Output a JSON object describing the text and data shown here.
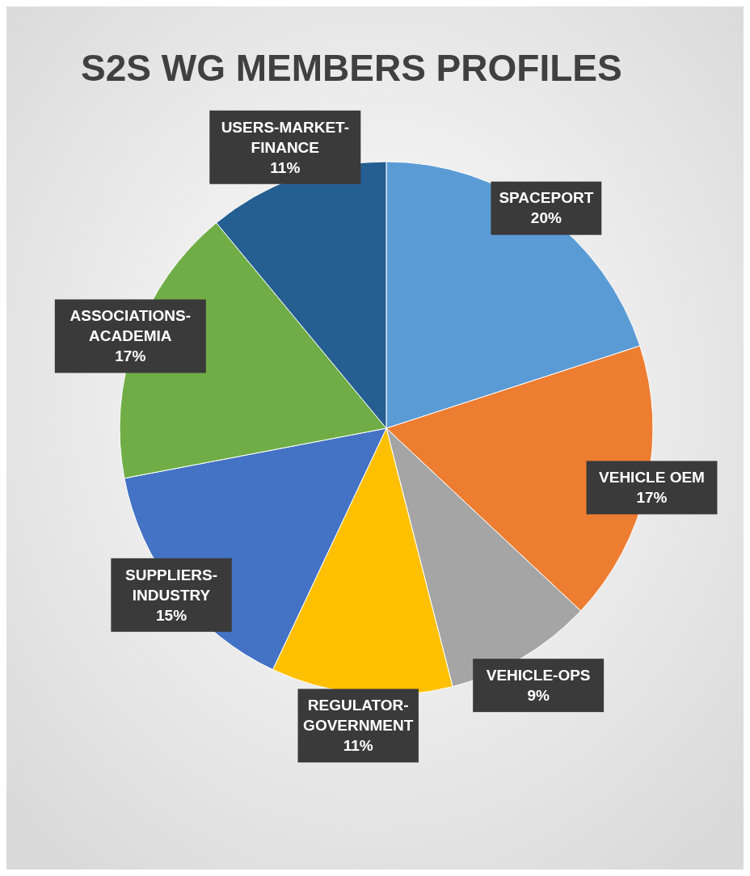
{
  "chart_data": {
    "type": "pie",
    "title": "S2S WG MEMBERS PROFILES",
    "categories": [
      "SPACEPORT",
      "VEHICLE OEM",
      "VEHICLE-OPS",
      "REGULATOR-GOVERNMENT",
      "SUPPLIERS-INDUSTRY",
      "ASSOCIATIONS-ACADEMIA",
      "USERS-MARKET-FINANCE"
    ],
    "values": [
      20,
      17,
      9,
      11,
      15,
      17,
      11
    ],
    "colors": [
      "#5b9bd5",
      "#ed7d31",
      "#a5a5a5",
      "#ffc000",
      "#4472c4",
      "#70ad47",
      "#255e91"
    ],
    "value_labels": [
      "20%",
      "17%",
      "9%",
      "11%",
      "15%",
      "17%",
      "11%"
    ]
  }
}
